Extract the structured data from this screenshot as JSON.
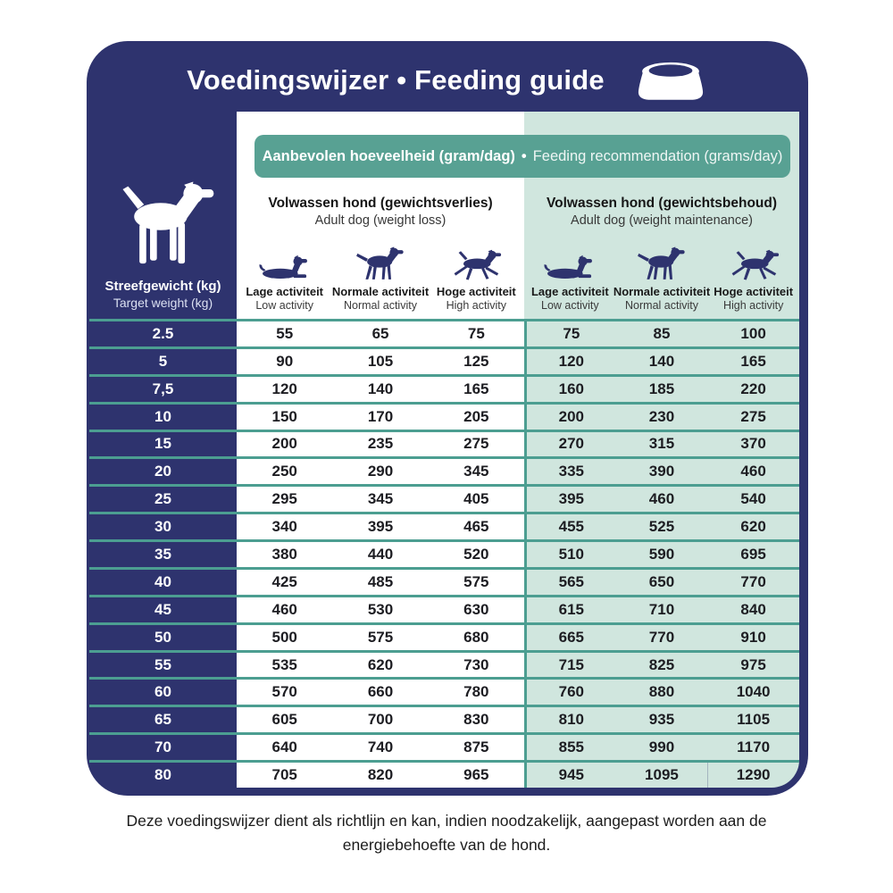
{
  "title": "Voedingswijzer • Feeding guide",
  "banner": {
    "bold": "Aanbevolen hoeveelheid (gram/dag)",
    "separator": "•",
    "regular": "Feeding recommendation (grams/day)"
  },
  "weight_column": {
    "icon": "dog-silhouette-icon",
    "label": "Streefgewicht (kg)",
    "sublabel": "Target weight (kg)"
  },
  "groups": [
    {
      "title": "Volwassen hond (gewichtsverlies)",
      "subtitle": "Adult dog (weight loss)",
      "columns": [
        {
          "icon": "dog-lying-icon",
          "label": "Lage activiteit",
          "sub": "Low activity"
        },
        {
          "icon": "dog-walking-icon",
          "label": "Normale activiteit",
          "sub": "Normal activity"
        },
        {
          "icon": "dog-running-icon",
          "label": "Hoge activiteit",
          "sub": "High activity"
        }
      ]
    },
    {
      "title": "Volwassen hond (gewichtsbehoud)",
      "subtitle": "Adult dog (weight maintenance)",
      "columns": [
        {
          "icon": "dog-lying-icon",
          "label": "Lage activiteit",
          "sub": "Low activity"
        },
        {
          "icon": "dog-walking-icon",
          "label": "Normale activiteit",
          "sub": "Normal activity"
        },
        {
          "icon": "dog-running-icon",
          "label": "Hoge activiteit",
          "sub": "High activity"
        }
      ]
    }
  ],
  "header_icons": [
    "dog-bowl-icon"
  ],
  "colors": {
    "navy": "#2e336e",
    "teal_banner": "#58a193",
    "teal_line": "#4c9e91",
    "mint": "#d0e6de"
  },
  "chart_data": {
    "type": "table",
    "title": "Voedingswijzer • Feeding guide",
    "subtitle": "Aanbevolen hoeveelheid (gram/dag) • Feeding recommendation (grams/day)",
    "row_header": "Streefgewicht (kg) / Target weight (kg)",
    "column_groups": [
      "Volwassen hond (gewichtsverlies) / Adult dog (weight loss)",
      "Volwassen hond (gewichtsbehoud) / Adult dog (weight maintenance)"
    ],
    "columns": [
      "Lage activiteit / Low activity",
      "Normale activiteit / Normal activity",
      "Hoge activiteit / High activity"
    ],
    "rows": [
      {
        "weight": "2.5",
        "weight_loss": [
          55,
          65,
          75
        ],
        "weight_maintenance": [
          75,
          85,
          100
        ]
      },
      {
        "weight": "5",
        "weight_loss": [
          90,
          105,
          125
        ],
        "weight_maintenance": [
          120,
          140,
          165
        ]
      },
      {
        "weight": "7,5",
        "weight_loss": [
          120,
          140,
          165
        ],
        "weight_maintenance": [
          160,
          185,
          220
        ]
      },
      {
        "weight": "10",
        "weight_loss": [
          150,
          170,
          205
        ],
        "weight_maintenance": [
          200,
          230,
          275
        ]
      },
      {
        "weight": "15",
        "weight_loss": [
          200,
          235,
          275
        ],
        "weight_maintenance": [
          270,
          315,
          370
        ]
      },
      {
        "weight": "20",
        "weight_loss": [
          250,
          290,
          345
        ],
        "weight_maintenance": [
          335,
          390,
          460
        ]
      },
      {
        "weight": "25",
        "weight_loss": [
          295,
          345,
          405
        ],
        "weight_maintenance": [
          395,
          460,
          540
        ]
      },
      {
        "weight": "30",
        "weight_loss": [
          340,
          395,
          465
        ],
        "weight_maintenance": [
          455,
          525,
          620
        ]
      },
      {
        "weight": "35",
        "weight_loss": [
          380,
          440,
          520
        ],
        "weight_maintenance": [
          510,
          590,
          695
        ]
      },
      {
        "weight": "40",
        "weight_loss": [
          425,
          485,
          575
        ],
        "weight_maintenance": [
          565,
          650,
          770
        ]
      },
      {
        "weight": "45",
        "weight_loss": [
          460,
          530,
          630
        ],
        "weight_maintenance": [
          615,
          710,
          840
        ]
      },
      {
        "weight": "50",
        "weight_loss": [
          500,
          575,
          680
        ],
        "weight_maintenance": [
          665,
          770,
          910
        ]
      },
      {
        "weight": "55",
        "weight_loss": [
          535,
          620,
          730
        ],
        "weight_maintenance": [
          715,
          825,
          975
        ]
      },
      {
        "weight": "60",
        "weight_loss": [
          570,
          660,
          780
        ],
        "weight_maintenance": [
          760,
          880,
          1040
        ]
      },
      {
        "weight": "65",
        "weight_loss": [
          605,
          700,
          830
        ],
        "weight_maintenance": [
          810,
          935,
          1105
        ]
      },
      {
        "weight": "70",
        "weight_loss": [
          640,
          740,
          875
        ],
        "weight_maintenance": [
          855,
          990,
          1170
        ]
      },
      {
        "weight": "80",
        "weight_loss": [
          705,
          820,
          965
        ],
        "weight_maintenance": [
          945,
          1095,
          1290
        ]
      }
    ]
  },
  "footer": "Deze voedingswijzer dient als richtlijn en kan, indien noodzakelijk, aangepast worden aan de energiebehoefte van de hond."
}
